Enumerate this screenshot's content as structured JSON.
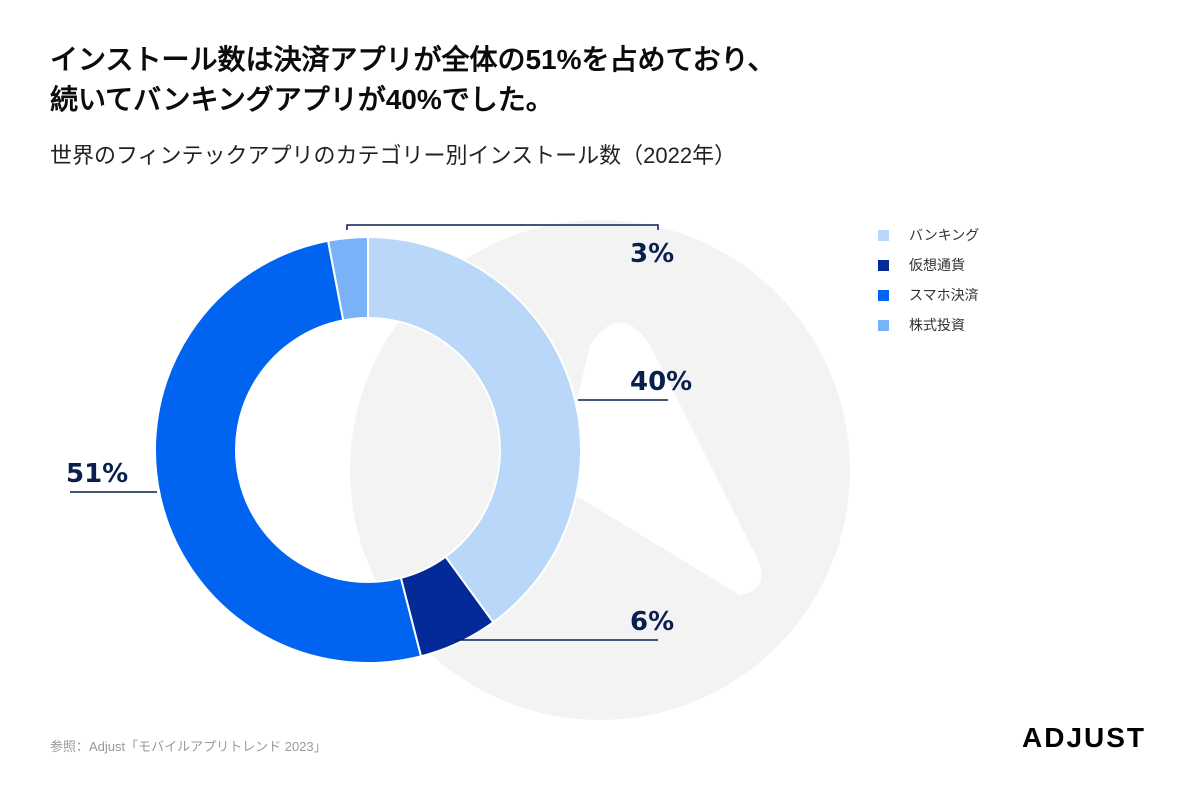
{
  "headline": {
    "line1": "インストール数は決済アプリが全体の51%を占めており、",
    "line2": "続いてバンキングアプリが40%でした。"
  },
  "chart_data": {
    "type": "pie",
    "title": "世界のフィンテックアプリのカテゴリー別インストール数（2022年）",
    "categories": [
      "バンキング",
      "仮想通貨",
      "スマホ決済",
      "株式投資"
    ],
    "values": [
      40,
      6,
      51,
      3
    ],
    "labels": [
      "40%",
      "6%",
      "51%",
      "3%"
    ],
    "colors": [
      "#b9d7f8",
      "#032a97",
      "#0064f0",
      "#7ab2f7"
    ],
    "donut": true,
    "legend_position": "top-right"
  },
  "source": "参照：Adjust「モバイルアプリトレンド 2023」",
  "brand": "ADJUST"
}
